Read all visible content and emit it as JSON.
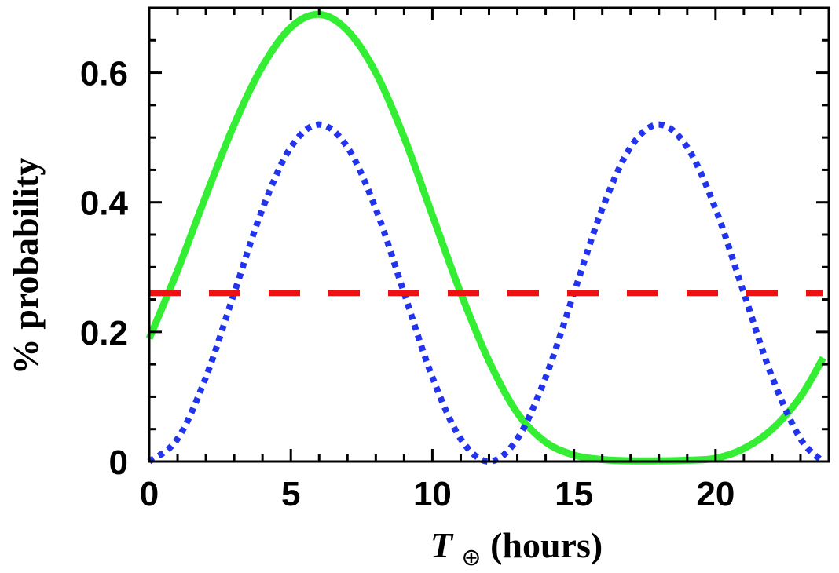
{
  "chart_data": {
    "type": "line",
    "title": "",
    "xlabel": {
      "symbol": "T",
      "subscript": "⊕",
      "text": " (hours)"
    },
    "ylabel": "% probability",
    "xlim": [
      0,
      24
    ],
    "ylim": [
      0,
      0.7
    ],
    "xticks": [
      0,
      5,
      10,
      15,
      20
    ],
    "xtick_labels": [
      "0",
      "5",
      "10",
      "15",
      "20"
    ],
    "yticks": [
      0,
      0.2,
      0.4,
      0.6
    ],
    "ytick_labels": [
      "0",
      "0.2",
      "0.4",
      "0.6"
    ],
    "grid": false,
    "legend": "none",
    "series": [
      {
        "color": "#33ee33",
        "style": "solid",
        "x": [
          0,
          1,
          2,
          3,
          4,
          5,
          6,
          7,
          8,
          9,
          10,
          11,
          12,
          13,
          14,
          15,
          16,
          17,
          18,
          19,
          20,
          21,
          22,
          23,
          23.8
        ],
        "values": [
          0.19,
          0.295,
          0.41,
          0.52,
          0.61,
          0.67,
          0.69,
          0.665,
          0.6,
          0.5,
          0.38,
          0.26,
          0.155,
          0.075,
          0.03,
          0.01,
          0.003,
          0.001,
          0.001,
          0.002,
          0.005,
          0.02,
          0.05,
          0.1,
          0.16
        ]
      },
      {
        "color": "#2233ee",
        "style": "dotted",
        "x": [
          0,
          1,
          2,
          3,
          4,
          5,
          6,
          7,
          8,
          9,
          10,
          11,
          12,
          13,
          14,
          15,
          16,
          17,
          18,
          19,
          20,
          21,
          22,
          23,
          23.8
        ],
        "values": [
          0.0,
          0.035,
          0.13,
          0.26,
          0.39,
          0.485,
          0.52,
          0.485,
          0.39,
          0.26,
          0.13,
          0.035,
          0.0,
          0.035,
          0.13,
          0.26,
          0.39,
          0.485,
          0.52,
          0.485,
          0.39,
          0.26,
          0.13,
          0.035,
          0.0
        ]
      },
      {
        "color": "#ee1111",
        "style": "dashed",
        "x": [
          0,
          23.8
        ],
        "values": [
          0.26,
          0.26
        ]
      }
    ]
  }
}
